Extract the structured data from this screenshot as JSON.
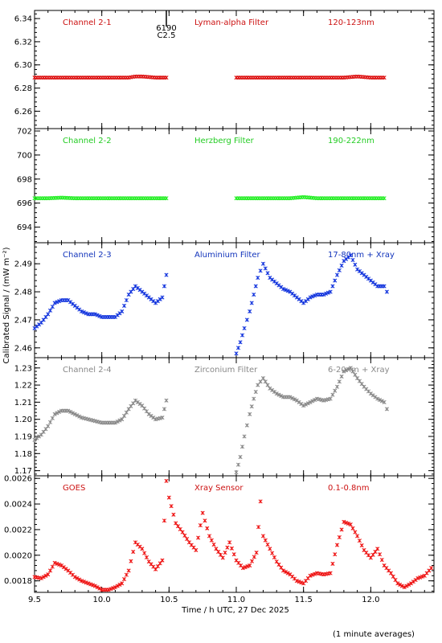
{
  "chart_data": [
    {
      "type": "scatter",
      "name": "Channel 2-1",
      "labels": [
        "Channel 2-1",
        "Lyman-alpha Filter",
        "120-123nm"
      ],
      "label_color": "#cc1111",
      "color": "#dd1111",
      "ylim": [
        6.245,
        6.347
      ],
      "yticks": [
        6.26,
        6.28,
        6.3,
        6.32,
        6.34
      ],
      "ytick_labels": [
        "6.26",
        "6.28",
        "6.30",
        "6.32",
        "6.34"
      ],
      "annotation": {
        "x": 10.48,
        "lines": [
          "6190",
          "C2.5"
        ]
      },
      "points": [
        [
          9.5,
          6.289
        ],
        [
          9.6,
          6.289
        ],
        [
          9.7,
          6.289
        ],
        [
          9.8,
          6.289
        ],
        [
          9.9,
          6.289
        ],
        [
          10.0,
          6.289
        ],
        [
          10.1,
          6.289
        ],
        [
          10.2,
          6.289
        ],
        [
          10.25,
          6.29
        ],
        [
          10.3,
          6.29
        ],
        [
          10.4,
          6.289
        ],
        [
          10.48,
          6.289
        ],
        [
          11.0,
          6.289
        ],
        [
          11.1,
          6.289
        ],
        [
          11.2,
          6.289
        ],
        [
          11.3,
          6.289
        ],
        [
          11.4,
          6.289
        ],
        [
          11.5,
          6.289
        ],
        [
          11.6,
          6.289
        ],
        [
          11.7,
          6.289
        ],
        [
          11.8,
          6.289
        ],
        [
          11.9,
          6.29
        ],
        [
          12.0,
          6.289
        ],
        [
          12.1,
          6.289
        ]
      ]
    },
    {
      "type": "scatter",
      "name": "Channel 2-2",
      "labels": [
        "Channel 2-2",
        "Herzberg Filter",
        "190-222nm"
      ],
      "label_color": "#22cc22",
      "color": "#22ee22",
      "ylim": [
        692.7,
        702.2
      ],
      "yticks": [
        694,
        696,
        698,
        700,
        702
      ],
      "ytick_labels": [
        "694",
        "696",
        "698",
        "700",
        "702"
      ],
      "points": [
        [
          9.5,
          696.4
        ],
        [
          9.6,
          696.4
        ],
        [
          9.7,
          696.45
        ],
        [
          9.8,
          696.4
        ],
        [
          9.9,
          696.4
        ],
        [
          10.0,
          696.4
        ],
        [
          10.1,
          696.4
        ],
        [
          10.2,
          696.4
        ],
        [
          10.3,
          696.4
        ],
        [
          10.4,
          696.4
        ],
        [
          10.48,
          696.4
        ],
        [
          11.0,
          696.4
        ],
        [
          11.1,
          696.4
        ],
        [
          11.2,
          696.4
        ],
        [
          11.3,
          696.4
        ],
        [
          11.4,
          696.4
        ],
        [
          11.5,
          696.5
        ],
        [
          11.6,
          696.4
        ],
        [
          11.7,
          696.4
        ],
        [
          11.8,
          696.4
        ],
        [
          11.9,
          696.4
        ],
        [
          12.0,
          696.4
        ],
        [
          12.1,
          696.4
        ]
      ]
    },
    {
      "type": "scatter",
      "name": "Channel 2-3",
      "labels": [
        "Channel 2-3",
        "Aluminium Filter",
        "17-80nm + Xray"
      ],
      "label_color": "#1133bb",
      "color": "#1133dd",
      "ylim": [
        2.4565,
        2.4975
      ],
      "yticks": [
        2.46,
        2.47,
        2.48,
        2.49
      ],
      "ytick_labels": [
        "2.46",
        "2.47",
        "2.48",
        "2.49"
      ],
      "points": [
        [
          9.5,
          2.467
        ],
        [
          9.55,
          2.469
        ],
        [
          9.6,
          2.472
        ],
        [
          9.65,
          2.476
        ],
        [
          9.7,
          2.477
        ],
        [
          9.75,
          2.477
        ],
        [
          9.8,
          2.475
        ],
        [
          9.85,
          2.473
        ],
        [
          9.9,
          2.472
        ],
        [
          9.95,
          2.472
        ],
        [
          10.0,
          2.471
        ],
        [
          10.05,
          2.471
        ],
        [
          10.1,
          2.471
        ],
        [
          10.15,
          2.473
        ],
        [
          10.2,
          2.479
        ],
        [
          10.25,
          2.482
        ],
        [
          10.3,
          2.48
        ],
        [
          10.35,
          2.478
        ],
        [
          10.4,
          2.476
        ],
        [
          10.45,
          2.478
        ],
        [
          10.48,
          2.486
        ],
        [
          11.0,
          2.458
        ],
        [
          11.03,
          2.462
        ],
        [
          11.06,
          2.467
        ],
        [
          11.1,
          2.473
        ],
        [
          11.13,
          2.479
        ],
        [
          11.16,
          2.485
        ],
        [
          11.2,
          2.49
        ],
        [
          11.25,
          2.485
        ],
        [
          11.3,
          2.483
        ],
        [
          11.35,
          2.481
        ],
        [
          11.4,
          2.48
        ],
        [
          11.45,
          2.478
        ],
        [
          11.5,
          2.476
        ],
        [
          11.55,
          2.478
        ],
        [
          11.6,
          2.479
        ],
        [
          11.65,
          2.479
        ],
        [
          11.7,
          2.48
        ],
        [
          11.75,
          2.486
        ],
        [
          11.8,
          2.491
        ],
        [
          11.85,
          2.493
        ],
        [
          11.9,
          2.488
        ],
        [
          11.95,
          2.486
        ],
        [
          12.0,
          2.484
        ],
        [
          12.05,
          2.482
        ],
        [
          12.1,
          2.482
        ],
        [
          12.12,
          2.48
        ]
      ]
    },
    {
      "type": "scatter",
      "name": "Channel 2-4",
      "labels": [
        "Channel 2-4",
        "Zirconium Filter",
        "6-20nm + Xray"
      ],
      "label_color": "#888888",
      "color": "#888888",
      "ylim": [
        1.167,
        1.236
      ],
      "yticks": [
        1.17,
        1.18,
        1.19,
        1.2,
        1.21,
        1.22,
        1.23
      ],
      "ytick_labels": [
        "1.17",
        "1.18",
        "1.19",
        "1.20",
        "1.21",
        "1.22",
        "1.23"
      ],
      "points": [
        [
          9.5,
          1.188
        ],
        [
          9.55,
          1.191
        ],
        [
          9.6,
          1.196
        ],
        [
          9.65,
          1.203
        ],
        [
          9.7,
          1.205
        ],
        [
          9.75,
          1.205
        ],
        [
          9.8,
          1.203
        ],
        [
          9.85,
          1.201
        ],
        [
          9.9,
          1.2
        ],
        [
          9.95,
          1.199
        ],
        [
          10.0,
          1.198
        ],
        [
          10.05,
          1.198
        ],
        [
          10.1,
          1.198
        ],
        [
          10.15,
          1.2
        ],
        [
          10.2,
          1.206
        ],
        [
          10.25,
          1.211
        ],
        [
          10.3,
          1.208
        ],
        [
          10.35,
          1.203
        ],
        [
          10.4,
          1.2
        ],
        [
          10.45,
          1.201
        ],
        [
          10.48,
          1.211
        ],
        [
          11.0,
          1.169
        ],
        [
          11.03,
          1.178
        ],
        [
          11.06,
          1.19
        ],
        [
          11.1,
          1.203
        ],
        [
          11.13,
          1.212
        ],
        [
          11.16,
          1.22
        ],
        [
          11.2,
          1.224
        ],
        [
          11.25,
          1.218
        ],
        [
          11.3,
          1.215
        ],
        [
          11.35,
          1.213
        ],
        [
          11.4,
          1.213
        ],
        [
          11.45,
          1.211
        ],
        [
          11.5,
          1.208
        ],
        [
          11.55,
          1.21
        ],
        [
          11.6,
          1.212
        ],
        [
          11.65,
          1.211
        ],
        [
          11.7,
          1.212
        ],
        [
          11.75,
          1.219
        ],
        [
          11.8,
          1.228
        ],
        [
          11.85,
          1.23
        ],
        [
          11.9,
          1.224
        ],
        [
          11.95,
          1.219
        ],
        [
          12.0,
          1.215
        ],
        [
          12.05,
          1.212
        ],
        [
          12.1,
          1.21
        ],
        [
          12.12,
          1.206
        ]
      ]
    },
    {
      "type": "scatter",
      "name": "GOES",
      "labels": [
        "GOES",
        "Xray Sensor",
        "0.1-0.8nm"
      ],
      "label_color": "#cc1111",
      "color": "#ee1111",
      "ylim": [
        0.00171,
        0.00262
      ],
      "yticks": [
        0.0018,
        0.002,
        0.0022,
        0.0024,
        0.0026
      ],
      "ytick_labels": [
        "0.0018",
        "0.0020",
        "0.0022",
        "0.0024",
        "0.0026"
      ],
      "points": [
        [
          9.5,
          0.00183
        ],
        [
          9.55,
          0.00182
        ],
        [
          9.6,
          0.00185
        ],
        [
          9.65,
          0.00194
        ],
        [
          9.7,
          0.00192
        ],
        [
          9.75,
          0.00188
        ],
        [
          9.8,
          0.00183
        ],
        [
          9.85,
          0.0018
        ],
        [
          9.9,
          0.00178
        ],
        [
          9.95,
          0.00176
        ],
        [
          10.0,
          0.00173
        ],
        [
          10.05,
          0.00173
        ],
        [
          10.1,
          0.00175
        ],
        [
          10.15,
          0.00178
        ],
        [
          10.2,
          0.00188
        ],
        [
          10.25,
          0.0021
        ],
        [
          10.3,
          0.00205
        ],
        [
          10.35,
          0.00195
        ],
        [
          10.4,
          0.00189
        ],
        [
          10.45,
          0.00196
        ],
        [
          10.48,
          0.00258
        ],
        [
          10.5,
          0.00245
        ],
        [
          10.55,
          0.00225
        ],
        [
          10.6,
          0.00218
        ],
        [
          10.65,
          0.0021
        ],
        [
          10.7,
          0.00204
        ],
        [
          10.75,
          0.00233
        ],
        [
          10.8,
          0.00215
        ],
        [
          10.85,
          0.00205
        ],
        [
          10.9,
          0.00198
        ],
        [
          10.95,
          0.0021
        ],
        [
          11.0,
          0.00196
        ],
        [
          11.05,
          0.0019
        ],
        [
          11.1,
          0.00192
        ],
        [
          11.15,
          0.00202
        ],
        [
          11.18,
          0.00242
        ],
        [
          11.2,
          0.00215
        ],
        [
          11.25,
          0.00205
        ],
        [
          11.3,
          0.00195
        ],
        [
          11.35,
          0.00188
        ],
        [
          11.4,
          0.00185
        ],
        [
          11.45,
          0.0018
        ],
        [
          11.5,
          0.00178
        ],
        [
          11.55,
          0.00184
        ],
        [
          11.6,
          0.00186
        ],
        [
          11.65,
          0.00185
        ],
        [
          11.7,
          0.00186
        ],
        [
          11.75,
          0.00208
        ],
        [
          11.8,
          0.00226
        ],
        [
          11.85,
          0.00224
        ],
        [
          11.9,
          0.00215
        ],
        [
          11.95,
          0.00204
        ],
        [
          12.0,
          0.00198
        ],
        [
          12.05,
          0.00205
        ],
        [
          12.1,
          0.00192
        ],
        [
          12.15,
          0.00186
        ],
        [
          12.2,
          0.00178
        ],
        [
          12.25,
          0.00175
        ],
        [
          12.3,
          0.00178
        ],
        [
          12.35,
          0.00182
        ],
        [
          12.4,
          0.00184
        ],
        [
          12.45,
          0.0019
        ]
      ]
    }
  ],
  "xaxis": {
    "label": "Time / h UTC, 27 Dec 2025",
    "xlim": [
      9.5,
      12.47
    ],
    "ticks": [
      9.5,
      10.0,
      10.5,
      11.0,
      11.5,
      12.0
    ],
    "tick_labels": [
      "9.5",
      "10.0",
      "10.5",
      "11.0",
      "11.5",
      "12.0"
    ]
  },
  "ylabel": "Calibrated Signal / (mW m⁻²)",
  "footnote": "(1 minute averages)"
}
